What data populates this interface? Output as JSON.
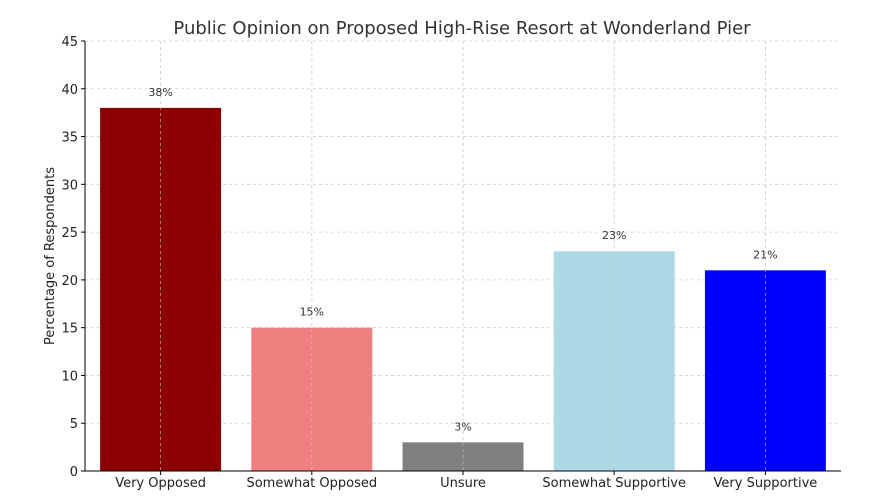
{
  "chart_data": {
    "type": "bar",
    "title": "Public Opinion on Proposed High-Rise Resort at Wonderland Pier",
    "xlabel": "",
    "ylabel": "Percentage of Respondents",
    "categories": [
      "Very Opposed",
      "Somewhat Opposed",
      "Unsure",
      "Somewhat Supportive",
      "Very Supportive"
    ],
    "values": [
      38,
      15,
      3,
      23,
      21
    ],
    "data_labels": [
      "38%",
      "15%",
      "3%",
      "23%",
      "21%"
    ],
    "colors": [
      "#8b0000",
      "#f08080",
      "#808080",
      "#add8e6",
      "#0000ff"
    ],
    "ylim": [
      0,
      45
    ],
    "yticks": [
      0,
      5,
      10,
      15,
      20,
      25,
      30,
      35,
      40,
      45
    ],
    "grid": true
  }
}
